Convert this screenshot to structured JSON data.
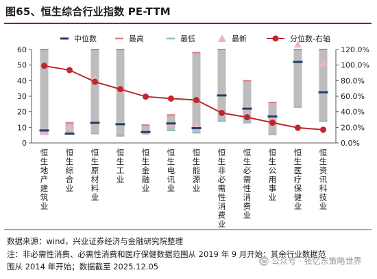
{
  "title": "图65、恒生综合行业指数 PE-TTM",
  "footer": {
    "source": "数据来源：wind，兴业证券经济与金融研究院整理",
    "note_line1": "注：非必需性消费、必需性消费和医疗保健数据范围从 2019 年 9 月开始；其余行业数据范",
    "note_line2": "围从 2014 年开始；数据截至 2025.12.05",
    "watermark": "公众号 · 张忆东策略世界"
  },
  "colors": {
    "median": "#1f3f6e",
    "max": "#e07b7b",
    "min": "#8fb9c6",
    "latest": "#f0b3c2",
    "percentile": "#c0262d",
    "range_bar": "#bdbdbd",
    "title_rule": "#9a1c1c"
  },
  "chart_data": {
    "type": "bar",
    "categories": [
      "恒生地产建筑业",
      "恒生综合业",
      "恒生原材料业",
      "恒生工业",
      "恒生金融业",
      "恒生电讯业",
      "恒生能源业",
      "恒生非必需性消费业",
      "恒生必需性消费业",
      "恒生公用事业",
      "恒生医疗保健业",
      "恒生资讯科技业"
    ],
    "legend": [
      "中位数",
      "最高",
      "最低",
      "最新",
      "分位数-右轴"
    ],
    "legend_position": "top",
    "left_axis": {
      "ylim": [
        0,
        60
      ],
      "ticks": [
        0,
        10,
        20,
        30,
        40,
        50,
        60
      ]
    },
    "right_axis": {
      "ylim": [
        0,
        120
      ],
      "ticks": [
        "0.0%",
        "20.0%",
        "40.0%",
        "60.0%",
        "80.0%",
        "100.0%",
        "120.0%"
      ]
    },
    "grid": false,
    "series": [
      {
        "name": "最高",
        "values": [
          60,
          13,
          60,
          60,
          11.5,
          18,
          58,
          60,
          40,
          26,
          60,
          60
        ]
      },
      {
        "name": "最低",
        "values": [
          5.5,
          6,
          6,
          4.5,
          6.5,
          8,
          6.5,
          14,
          13,
          5.5,
          23,
          14
        ]
      },
      {
        "name": "中位数",
        "values": [
          8,
          6,
          13,
          12,
          7,
          12.5,
          9.5,
          30.5,
          22,
          17,
          52,
          32.5
        ]
      },
      {
        "name": "最新",
        "values": [
          7,
          10,
          41.5,
          34,
          7,
          12,
          11.5,
          19,
          22.5,
          16.5,
          63,
          51
        ]
      },
      {
        "name": "分位数-右轴",
        "values": [
          99,
          93.5,
          78.5,
          69,
          59.5,
          57,
          55,
          38.5,
          33,
          26,
          19.5,
          17
        ]
      }
    ]
  }
}
